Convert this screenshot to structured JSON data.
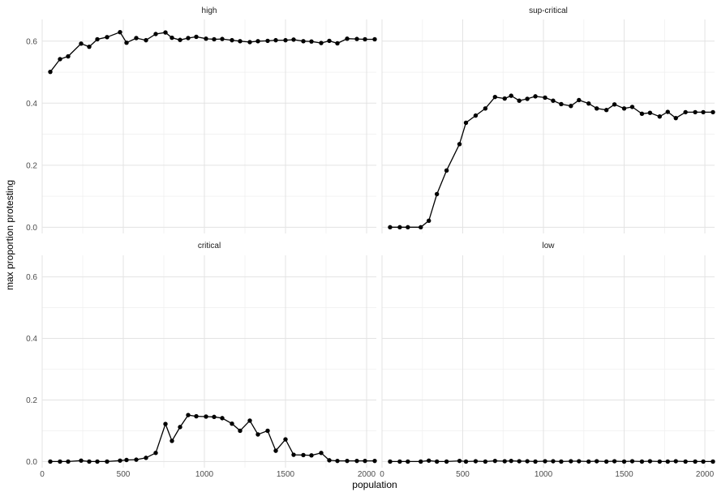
{
  "chart_data": {
    "type": "line",
    "xlabel": "population",
    "ylabel": "max proportion protesting",
    "xlim": [
      0,
      2060
    ],
    "ylim": [
      -0.02,
      0.67
    ],
    "x_ticks": [
      0,
      500,
      1000,
      1500,
      2000
    ],
    "x_tick_labels": [
      "0",
      "500",
      "1000",
      "1500",
      "2000"
    ],
    "y_ticks": [
      0.0,
      0.2,
      0.4,
      0.6
    ],
    "y_tick_labels": [
      "0.0",
      "0.2",
      "0.4",
      "0.6"
    ],
    "grid": true,
    "x": [
      50,
      110,
      160,
      240,
      290,
      340,
      400,
      480,
      520,
      580,
      640,
      700,
      760,
      800,
      850,
      900,
      950,
      1010,
      1060,
      1110,
      1170,
      1220,
      1280,
      1330,
      1390,
      1440,
      1500,
      1550,
      1610,
      1660,
      1720,
      1770,
      1820,
      1880,
      1940,
      1990,
      2050
    ],
    "panels": [
      {
        "name": "high",
        "values": [
          0.501,
          0.542,
          0.551,
          0.592,
          0.582,
          0.606,
          0.613,
          0.629,
          0.595,
          0.61,
          0.603,
          0.623,
          0.628,
          0.611,
          0.604,
          0.61,
          0.614,
          0.608,
          0.606,
          0.607,
          0.603,
          0.6,
          0.597,
          0.6,
          0.601,
          0.603,
          0.603,
          0.605,
          0.6,
          0.599,
          0.594,
          0.601,
          0.593,
          0.608,
          0.607,
          0.606,
          0.606
        ]
      },
      {
        "name": "sup-critical",
        "values": [
          0.0,
          0.0,
          0.0,
          0.0,
          0.021,
          0.107,
          0.183,
          0.268,
          0.337,
          0.36,
          0.383,
          0.42,
          0.415,
          0.424,
          0.408,
          0.414,
          0.422,
          0.418,
          0.408,
          0.397,
          0.391,
          0.41,
          0.399,
          0.383,
          0.378,
          0.396,
          0.383,
          0.388,
          0.366,
          0.369,
          0.357,
          0.372,
          0.352,
          0.371,
          0.371,
          0.371,
          0.371
        ]
      },
      {
        "name": "critical",
        "values": [
          0.0,
          0.0,
          0.0,
          0.003,
          0.0,
          0.0,
          0.0,
          0.003,
          0.005,
          0.006,
          0.012,
          0.028,
          0.122,
          0.067,
          0.112,
          0.151,
          0.147,
          0.146,
          0.145,
          0.141,
          0.123,
          0.1,
          0.133,
          0.088,
          0.1,
          0.035,
          0.072,
          0.022,
          0.021,
          0.02,
          0.028,
          0.004,
          0.002,
          0.002,
          0.002,
          0.002,
          0.002
        ]
      },
      {
        "name": "low",
        "values": [
          0.0,
          0.0,
          0.0,
          0.0,
          0.003,
          0.0,
          0.0,
          0.002,
          0.0,
          0.001,
          0.0,
          0.002,
          0.001,
          0.002,
          0.001,
          0.001,
          0.0,
          0.001,
          0.001,
          0.0,
          0.001,
          0.001,
          0.0,
          0.001,
          0.0,
          0.001,
          0.0,
          0.001,
          0.0,
          0.001,
          0.0,
          0.0,
          0.001,
          0.0,
          0.0,
          0.0,
          0.0
        ]
      }
    ]
  }
}
